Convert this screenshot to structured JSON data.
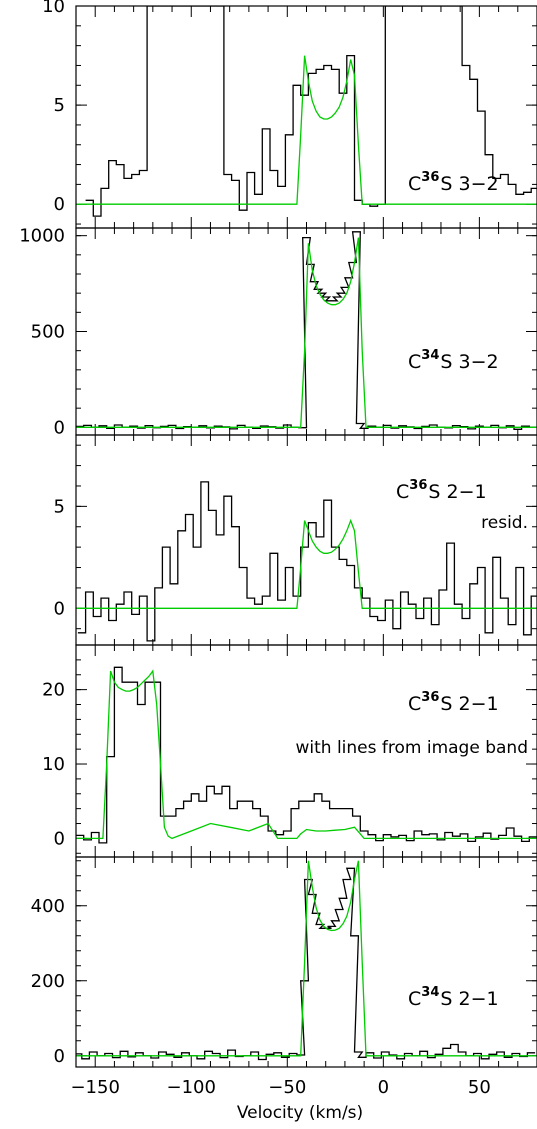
{
  "figure": {
    "xlabel": "Velocity (km/s)"
  },
  "colors": {
    "observed": "#000000",
    "model": "#00cc00"
  },
  "chart_data": [
    {
      "type": "line",
      "xlim": [
        -160,
        80
      ],
      "ylim": [
        -1.2,
        10
      ],
      "yticks": [
        0,
        5,
        10
      ],
      "label": {
        "molecule": "C",
        "isotope": "36",
        "species": "S 3−2",
        "note": ""
      },
      "series": [
        {
          "style": "step",
          "x": [
            -153,
            -149,
            -145,
            -141,
            -137,
            -133,
            -129,
            -125,
            -121,
            -117,
            -113,
            -109,
            -105,
            -101,
            -97,
            -93,
            -89,
            -85,
            -81,
            -77,
            -73,
            -69,
            -65,
            -61,
            -57,
            -53,
            -49,
            -45,
            -41,
            -37,
            -33,
            -29,
            -25,
            -21,
            -17,
            -13,
            -9,
            -5,
            -1,
            3,
            7,
            11,
            15,
            19,
            23,
            27,
            31,
            35,
            39,
            43,
            47,
            51,
            55,
            59,
            63,
            67,
            71,
            75,
            79
          ],
          "y": [
            0.2,
            -0.6,
            0.8,
            2.2,
            2.0,
            1.3,
            1.5,
            1.7,
            10,
            10,
            10,
            10,
            10,
            10,
            10,
            10,
            10,
            10,
            1.5,
            1.2,
            -0.3,
            1.6,
            0.5,
            3.8,
            1.7,
            0.9,
            3.5,
            6.0,
            5.5,
            6.6,
            6.8,
            7.0,
            6.8,
            5.6,
            7.5,
            0.2,
            0.0,
            -0.1,
            0.0,
            10,
            10,
            10,
            10,
            10,
            10,
            10,
            10,
            10,
            10,
            7.0,
            6.3,
            4.7,
            2.5,
            1.3,
            1.5,
            1.0,
            0.5,
            0.6,
            0.8
          ]
        },
        {
          "style": "line",
          "x": [
            -160,
            -45,
            -43,
            -41,
            -39,
            -37,
            -35,
            -33,
            -31,
            -29,
            -27,
            -25,
            -23,
            -21,
            -19,
            -17,
            -15,
            -13,
            -11,
            80
          ],
          "y": [
            0,
            0,
            3.5,
            7.5,
            6.2,
            5.2,
            4.7,
            4.4,
            4.3,
            4.3,
            4.4,
            4.6,
            4.9,
            5.4,
            6.2,
            7.3,
            6.5,
            3.0,
            0,
            0
          ]
        }
      ]
    },
    {
      "type": "line",
      "xlim": [
        -160,
        80
      ],
      "ylim": [
        -40,
        1040
      ],
      "yticks": [
        0,
        500,
        1000
      ],
      "label": {
        "molecule": "C",
        "isotope": "34",
        "species": "S 3−2",
        "note": ""
      },
      "series": [
        {
          "style": "step",
          "x": [
            -158,
            -154,
            -150,
            -146,
            -142,
            -138,
            -134,
            -130,
            -126,
            -122,
            -118,
            -114,
            -110,
            -106,
            -102,
            -98,
            -94,
            -90,
            -86,
            -82,
            -78,
            -74,
            -70,
            -66,
            -62,
            -58,
            -54,
            -50,
            -46,
            -42,
            -40,
            -38,
            -36,
            -34,
            -32,
            -30,
            -28,
            -26,
            -24,
            -22,
            -20,
            -18,
            -16,
            -14,
            -12,
            -10,
            -6,
            -2,
            2,
            6,
            10,
            14,
            18,
            22,
            26,
            30,
            34,
            38,
            42,
            46,
            50,
            54,
            58,
            62,
            66,
            70,
            74,
            78
          ],
          "y": [
            5,
            10,
            0,
            8,
            -5,
            12,
            0,
            6,
            -4,
            9,
            -2,
            5,
            10,
            -6,
            4,
            0,
            8,
            -3,
            6,
            2,
            -8,
            10,
            0,
            -5,
            7,
            3,
            -4,
            12,
            0,
            -2,
            990,
            850,
            760,
            720,
            700,
            680,
            660,
            660,
            680,
            700,
            730,
            780,
            860,
            1020,
            20,
            -5,
            6,
            0,
            10,
            -4,
            8,
            2,
            -6,
            5,
            12,
            0,
            -3,
            9,
            4,
            -8,
            6,
            0,
            10,
            -2,
            8,
            -10,
            6,
            0
          ]
        },
        {
          "style": "line",
          "x": [
            -160,
            -43,
            -41,
            -39,
            -37,
            -35,
            -33,
            -31,
            -29,
            -27,
            -25,
            -23,
            -21,
            -19,
            -17,
            -15,
            -13,
            -11,
            -9,
            80
          ],
          "y": [
            0,
            0,
            400,
            960,
            820,
            740,
            695,
            665,
            648,
            640,
            640,
            648,
            668,
            700,
            760,
            860,
            990,
            400,
            0,
            0
          ]
        }
      ]
    },
    {
      "type": "line",
      "xlim": [
        -160,
        80
      ],
      "ylim": [
        -1.8,
        8.5
      ],
      "yticks": [
        0,
        5
      ],
      "label": {
        "molecule": "C",
        "isotope": "36",
        "species": "S 2−1",
        "note": "resid."
      },
      "series": [
        {
          "style": "step",
          "x": [
            -157,
            -153,
            -149,
            -145,
            -141,
            -137,
            -133,
            -129,
            -125,
            -121,
            -117,
            -113,
            -109,
            -105,
            -101,
            -97,
            -93,
            -89,
            -85,
            -81,
            -77,
            -73,
            -69,
            -65,
            -61,
            -57,
            -53,
            -49,
            -45,
            -41,
            -37,
            -33,
            -29,
            -25,
            -21,
            -17,
            -13,
            -9,
            -5,
            -1,
            3,
            7,
            11,
            15,
            19,
            23,
            27,
            31,
            35,
            39,
            43,
            47,
            51,
            55,
            59,
            63,
            67,
            71,
            75,
            79
          ],
          "y": [
            -1.2,
            0.8,
            -0.4,
            0.5,
            -0.6,
            0.2,
            0.8,
            -0.3,
            0.6,
            -1.6,
            1.0,
            3.0,
            1.2,
            3.8,
            4.6,
            3.0,
            6.2,
            4.8,
            3.6,
            5.5,
            4.0,
            2.0,
            0.5,
            0.2,
            0.6,
            2.7,
            0.4,
            2.0,
            0.6,
            3.0,
            4.2,
            3.5,
            5.3,
            3.0,
            2.4,
            2.1,
            1.0,
            0.5,
            -0.4,
            -0.6,
            0.4,
            -1.0,
            0.8,
            0.2,
            -0.5,
            0.5,
            -0.8,
            0.9,
            3.2,
            0.2,
            -0.5,
            1.2,
            2.0,
            -1.2,
            2.5,
            0.5,
            -0.8,
            2.0,
            -1.3,
            0.6
          ]
        },
        {
          "style": "line",
          "x": [
            -160,
            -45,
            -43,
            -41,
            -39,
            -37,
            -35,
            -33,
            -31,
            -29,
            -27,
            -25,
            -23,
            -21,
            -19,
            -17,
            -15,
            -13,
            -11,
            80
          ],
          "y": [
            0,
            0,
            2.0,
            4.3,
            3.8,
            3.3,
            3.0,
            2.8,
            2.7,
            2.7,
            2.75,
            2.9,
            3.1,
            3.4,
            3.8,
            4.3,
            3.8,
            1.8,
            0,
            0
          ]
        }
      ]
    },
    {
      "type": "line",
      "xlim": [
        -160,
        80
      ],
      "ylim": [
        -2.5,
        26
      ],
      "yticks": [
        0,
        10,
        20
      ],
      "label": {
        "molecule": "C",
        "isotope": "36",
        "species": "S 2−1",
        "note": "with lines from image band"
      },
      "series": [
        {
          "style": "step",
          "x": [
            -158,
            -154,
            -150,
            -146,
            -142,
            -138,
            -134,
            -130,
            -126,
            -122,
            -118,
            -114,
            -110,
            -106,
            -102,
            -98,
            -94,
            -90,
            -86,
            -82,
            -78,
            -74,
            -70,
            -66,
            -62,
            -58,
            -54,
            -50,
            -46,
            -42,
            -38,
            -34,
            -30,
            -26,
            -22,
            -18,
            -14,
            -10,
            -6,
            -2,
            2,
            6,
            10,
            14,
            18,
            22,
            26,
            30,
            34,
            38,
            42,
            46,
            50,
            54,
            58,
            62,
            66,
            70,
            74,
            78
          ],
          "y": [
            0.4,
            -0.2,
            0.8,
            -0.6,
            11,
            23,
            21,
            21,
            18,
            21,
            21,
            3,
            3,
            4,
            5,
            6,
            5,
            7,
            6,
            7,
            4,
            5,
            5,
            4,
            3,
            1,
            0.5,
            1,
            4,
            5,
            5,
            6,
            5,
            4,
            4,
            4,
            3,
            1,
            0.5,
            -0.3,
            0.5,
            0.2,
            0.4,
            -0.3,
            1,
            0.5,
            0.6,
            -0.2,
            0.8,
            0.3,
            0.6,
            -0.4,
            0.2,
            0.7,
            -0.1,
            0.4,
            1.4,
            0.3,
            -0.4,
            0.2
          ]
        },
        {
          "style": "line",
          "x": [
            -160,
            -146,
            -144,
            -142,
            -140,
            -138,
            -136,
            -134,
            -132,
            -130,
            -128,
            -126,
            -124,
            -122,
            -120,
            -118,
            -116,
            -114,
            -112,
            -110,
            -100,
            -90,
            -80,
            -70,
            -60,
            -55,
            -45,
            -43,
            -40,
            -35,
            -30,
            -25,
            -20,
            -15,
            -12,
            -10,
            -5,
            80
          ],
          "y": [
            0,
            0,
            10,
            22.5,
            21,
            20.3,
            20,
            19.8,
            19.8,
            20,
            20.3,
            20.8,
            21.3,
            21.8,
            22.5,
            18,
            10,
            1.5,
            0.3,
            0,
            1,
            2,
            1.5,
            1,
            2,
            0,
            0,
            0.6,
            1.2,
            1.0,
            1.0,
            1.1,
            1.2,
            1.5,
            0.6,
            0,
            0,
            0
          ]
        }
      ]
    },
    {
      "type": "line",
      "xlim": [
        -160,
        80
      ],
      "ylim": [
        -30,
        530
      ],
      "yticks": [
        0,
        200,
        400
      ],
      "label": {
        "molecule": "C",
        "isotope": "34",
        "species": "S 2−1",
        "note": ""
      },
      "series": [
        {
          "style": "step",
          "x": [
            -159,
            -155,
            -151,
            -147,
            -143,
            -139,
            -135,
            -131,
            -127,
            -123,
            -119,
            -115,
            -111,
            -107,
            -103,
            -99,
            -95,
            -91,
            -87,
            -83,
            -79,
            -75,
            -71,
            -67,
            -63,
            -59,
            -55,
            -51,
            -47,
            -43,
            -41,
            -39,
            -37,
            -35,
            -33,
            -31,
            -29,
            -27,
            -25,
            -23,
            -21,
            -19,
            -17,
            -15,
            -13,
            -11,
            -7,
            -3,
            1,
            5,
            9,
            13,
            17,
            21,
            25,
            29,
            33,
            37,
            41,
            45,
            49,
            53,
            57,
            61,
            65,
            69,
            73,
            77
          ],
          "y": [
            5,
            -8,
            10,
            0,
            6,
            -5,
            12,
            -3,
            8,
            0,
            -6,
            10,
            4,
            -4,
            8,
            0,
            -8,
            12,
            6,
            -5,
            15,
            -2,
            0,
            10,
            -10,
            4,
            8,
            -4,
            6,
            2,
            200,
            470,
            430,
            380,
            350,
            340,
            340,
            345,
            360,
            390,
            420,
            470,
            500,
            320,
            10,
            -4,
            8,
            -6,
            10,
            2,
            -8,
            6,
            0,
            12,
            -5,
            4,
            20,
            30,
            10,
            0,
            6,
            -8,
            4,
            10,
            -4,
            6,
            -2,
            8
          ]
        },
        {
          "style": "line",
          "x": [
            -160,
            -43,
            -41,
            -39,
            -37,
            -35,
            -33,
            -31,
            -29,
            -27,
            -25,
            -23,
            -21,
            -19,
            -17,
            -15,
            -13,
            -11,
            -9,
            80
          ],
          "y": [
            0,
            0,
            250,
            520,
            450,
            395,
            362,
            345,
            337,
            334,
            335,
            340,
            352,
            372,
            410,
            470,
            520,
            250,
            0,
            0
          ]
        }
      ]
    }
  ]
}
